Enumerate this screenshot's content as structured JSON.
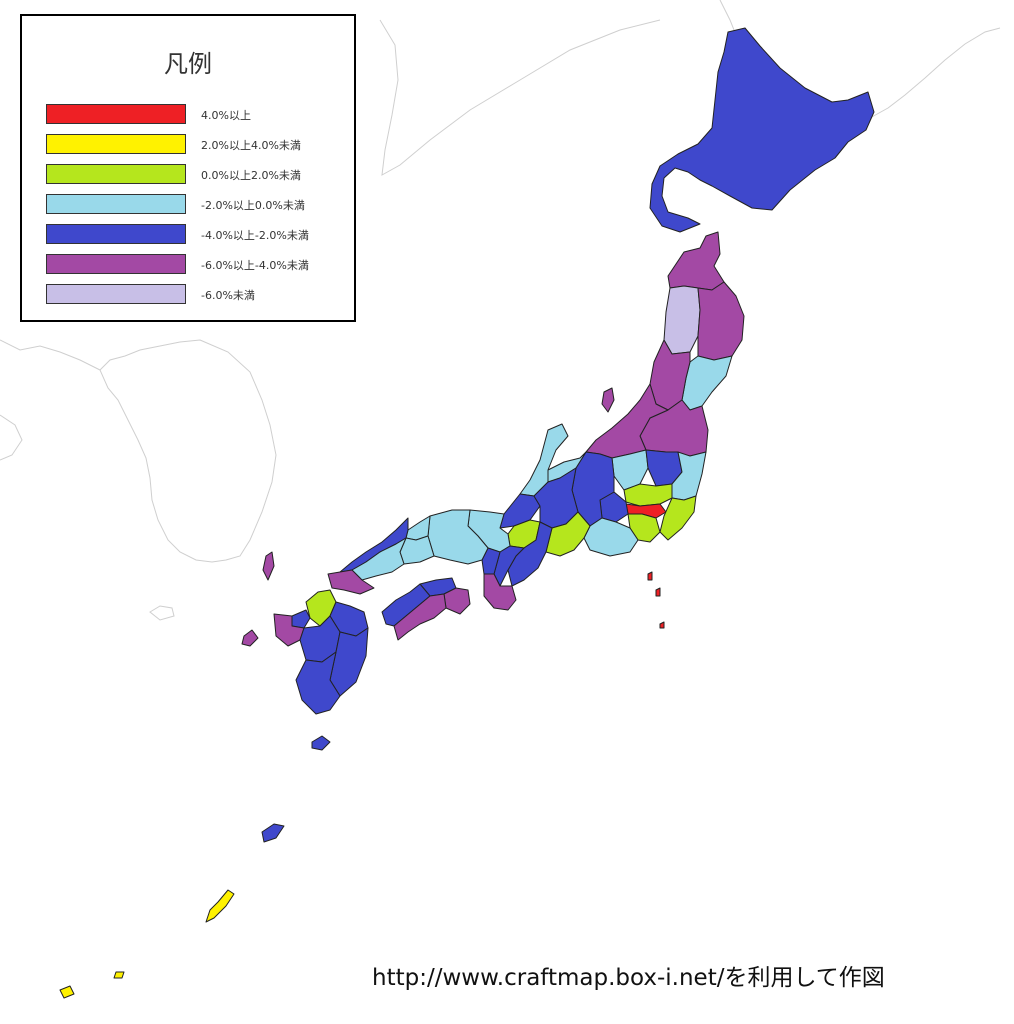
{
  "legend": {
    "title": "凡例",
    "items": [
      {
        "label": "4.0%以上",
        "color": "#EE2025"
      },
      {
        "label": "2.0%以上4.0%未満",
        "color": "#FFF200"
      },
      {
        "label": "0.0%以上2.0%未満",
        "color": "#B5E61D"
      },
      {
        "label": "-2.0%以上0.0%未満",
        "color": "#99D9EA"
      },
      {
        "label": "-4.0%以上-2.0%未満",
        "color": "#3F48CC"
      },
      {
        "label": "-6.0%以上-4.0%未満",
        "color": "#A349A4"
      },
      {
        "label": "-6.0%未満",
        "color": "#C8BFE7"
      }
    ]
  },
  "credit": "http://www.craftmap.box-i.net/を利用して作図",
  "map": {
    "border_color": "#222222",
    "neighbor_coast_color": "#cfcfcf",
    "regions": [
      {
        "name": "北海道",
        "category": "-4.0%以上-2.0%未満"
      },
      {
        "name": "青森県",
        "category": "-6.0%以上-4.0%未満"
      },
      {
        "name": "秋田県",
        "category": "-6.0%未満"
      },
      {
        "name": "岩手県",
        "category": "-6.0%以上-4.0%未満"
      },
      {
        "name": "宮城県",
        "category": "-2.0%以上0.0%未満"
      },
      {
        "name": "山形県",
        "category": "-6.0%以上-4.0%未満"
      },
      {
        "name": "福島県",
        "category": "-6.0%以上-4.0%未満"
      },
      {
        "name": "新潟県",
        "category": "-6.0%以上-4.0%未満"
      },
      {
        "name": "茨城県",
        "category": "-2.0%以上0.0%未満"
      },
      {
        "name": "栃木県",
        "category": "-4.0%以上-2.0%未満"
      },
      {
        "name": "群馬県",
        "category": "-2.0%以上0.0%未満"
      },
      {
        "name": "埼玉県",
        "category": "0.0%以上2.0%未満"
      },
      {
        "name": "千葉県",
        "category": "0.0%以上2.0%未満"
      },
      {
        "name": "東京都",
        "category": "4.0%以上"
      },
      {
        "name": "神奈川県",
        "category": "0.0%以上2.0%未満"
      },
      {
        "name": "山梨県",
        "category": "-4.0%以上-2.0%未満"
      },
      {
        "name": "長野県",
        "category": "-4.0%以上-2.0%未満"
      },
      {
        "name": "富山県",
        "category": "-2.0%以上0.0%未満"
      },
      {
        "name": "石川県",
        "category": "-2.0%以上0.0%未満"
      },
      {
        "name": "福井県",
        "category": "-4.0%以上-2.0%未満"
      },
      {
        "name": "岐阜県",
        "category": "-4.0%以上-2.0%未満"
      },
      {
        "name": "静岡県",
        "category": "-2.0%以上0.0%未満"
      },
      {
        "name": "愛知県",
        "category": "0.0%以上2.0%未満"
      },
      {
        "name": "三重県",
        "category": "-4.0%以上-2.0%未満"
      },
      {
        "name": "滋賀県",
        "category": "0.0%以上2.0%未満"
      },
      {
        "name": "京都府",
        "category": "-2.0%以上0.0%未満"
      },
      {
        "name": "大阪府",
        "category": "-4.0%以上-2.0%未満"
      },
      {
        "name": "兵庫県",
        "category": "-2.0%以上0.0%未満"
      },
      {
        "name": "奈良県",
        "category": "-4.0%以上-2.0%未満"
      },
      {
        "name": "和歌山県",
        "category": "-6.0%以上-4.0%未満"
      },
      {
        "name": "鳥取県",
        "category": "-2.0%以上0.0%未満"
      },
      {
        "name": "島根県",
        "category": "-4.0%以上-2.0%未満"
      },
      {
        "name": "岡山県",
        "category": "-2.0%以上0.0%未満"
      },
      {
        "name": "広島県",
        "category": "-2.0%以上0.0%未満"
      },
      {
        "name": "山口県",
        "category": "-6.0%以上-4.0%未満"
      },
      {
        "name": "香川県",
        "category": "-4.0%以上-2.0%未満"
      },
      {
        "name": "徳島県",
        "category": "-6.0%以上-4.0%未満"
      },
      {
        "name": "愛媛県",
        "category": "-4.0%以上-2.0%未満"
      },
      {
        "name": "高知県",
        "category": "-6.0%以上-4.0%未満"
      },
      {
        "name": "福岡県",
        "category": "0.0%以上2.0%未満"
      },
      {
        "name": "佐賀県",
        "category": "-4.0%以上-2.0%未満"
      },
      {
        "name": "長崎県",
        "category": "-6.0%以上-4.0%未満"
      },
      {
        "name": "大分県",
        "category": "-4.0%以上-2.0%未満"
      },
      {
        "name": "熊本県",
        "category": "-4.0%以上-2.0%未満"
      },
      {
        "name": "宮崎県",
        "category": "-4.0%以上-2.0%未満"
      },
      {
        "name": "鹿児島県",
        "category": "-4.0%以上-2.0%未満"
      },
      {
        "name": "沖縄県",
        "category": "2.0%以上4.0%未満"
      }
    ]
  }
}
